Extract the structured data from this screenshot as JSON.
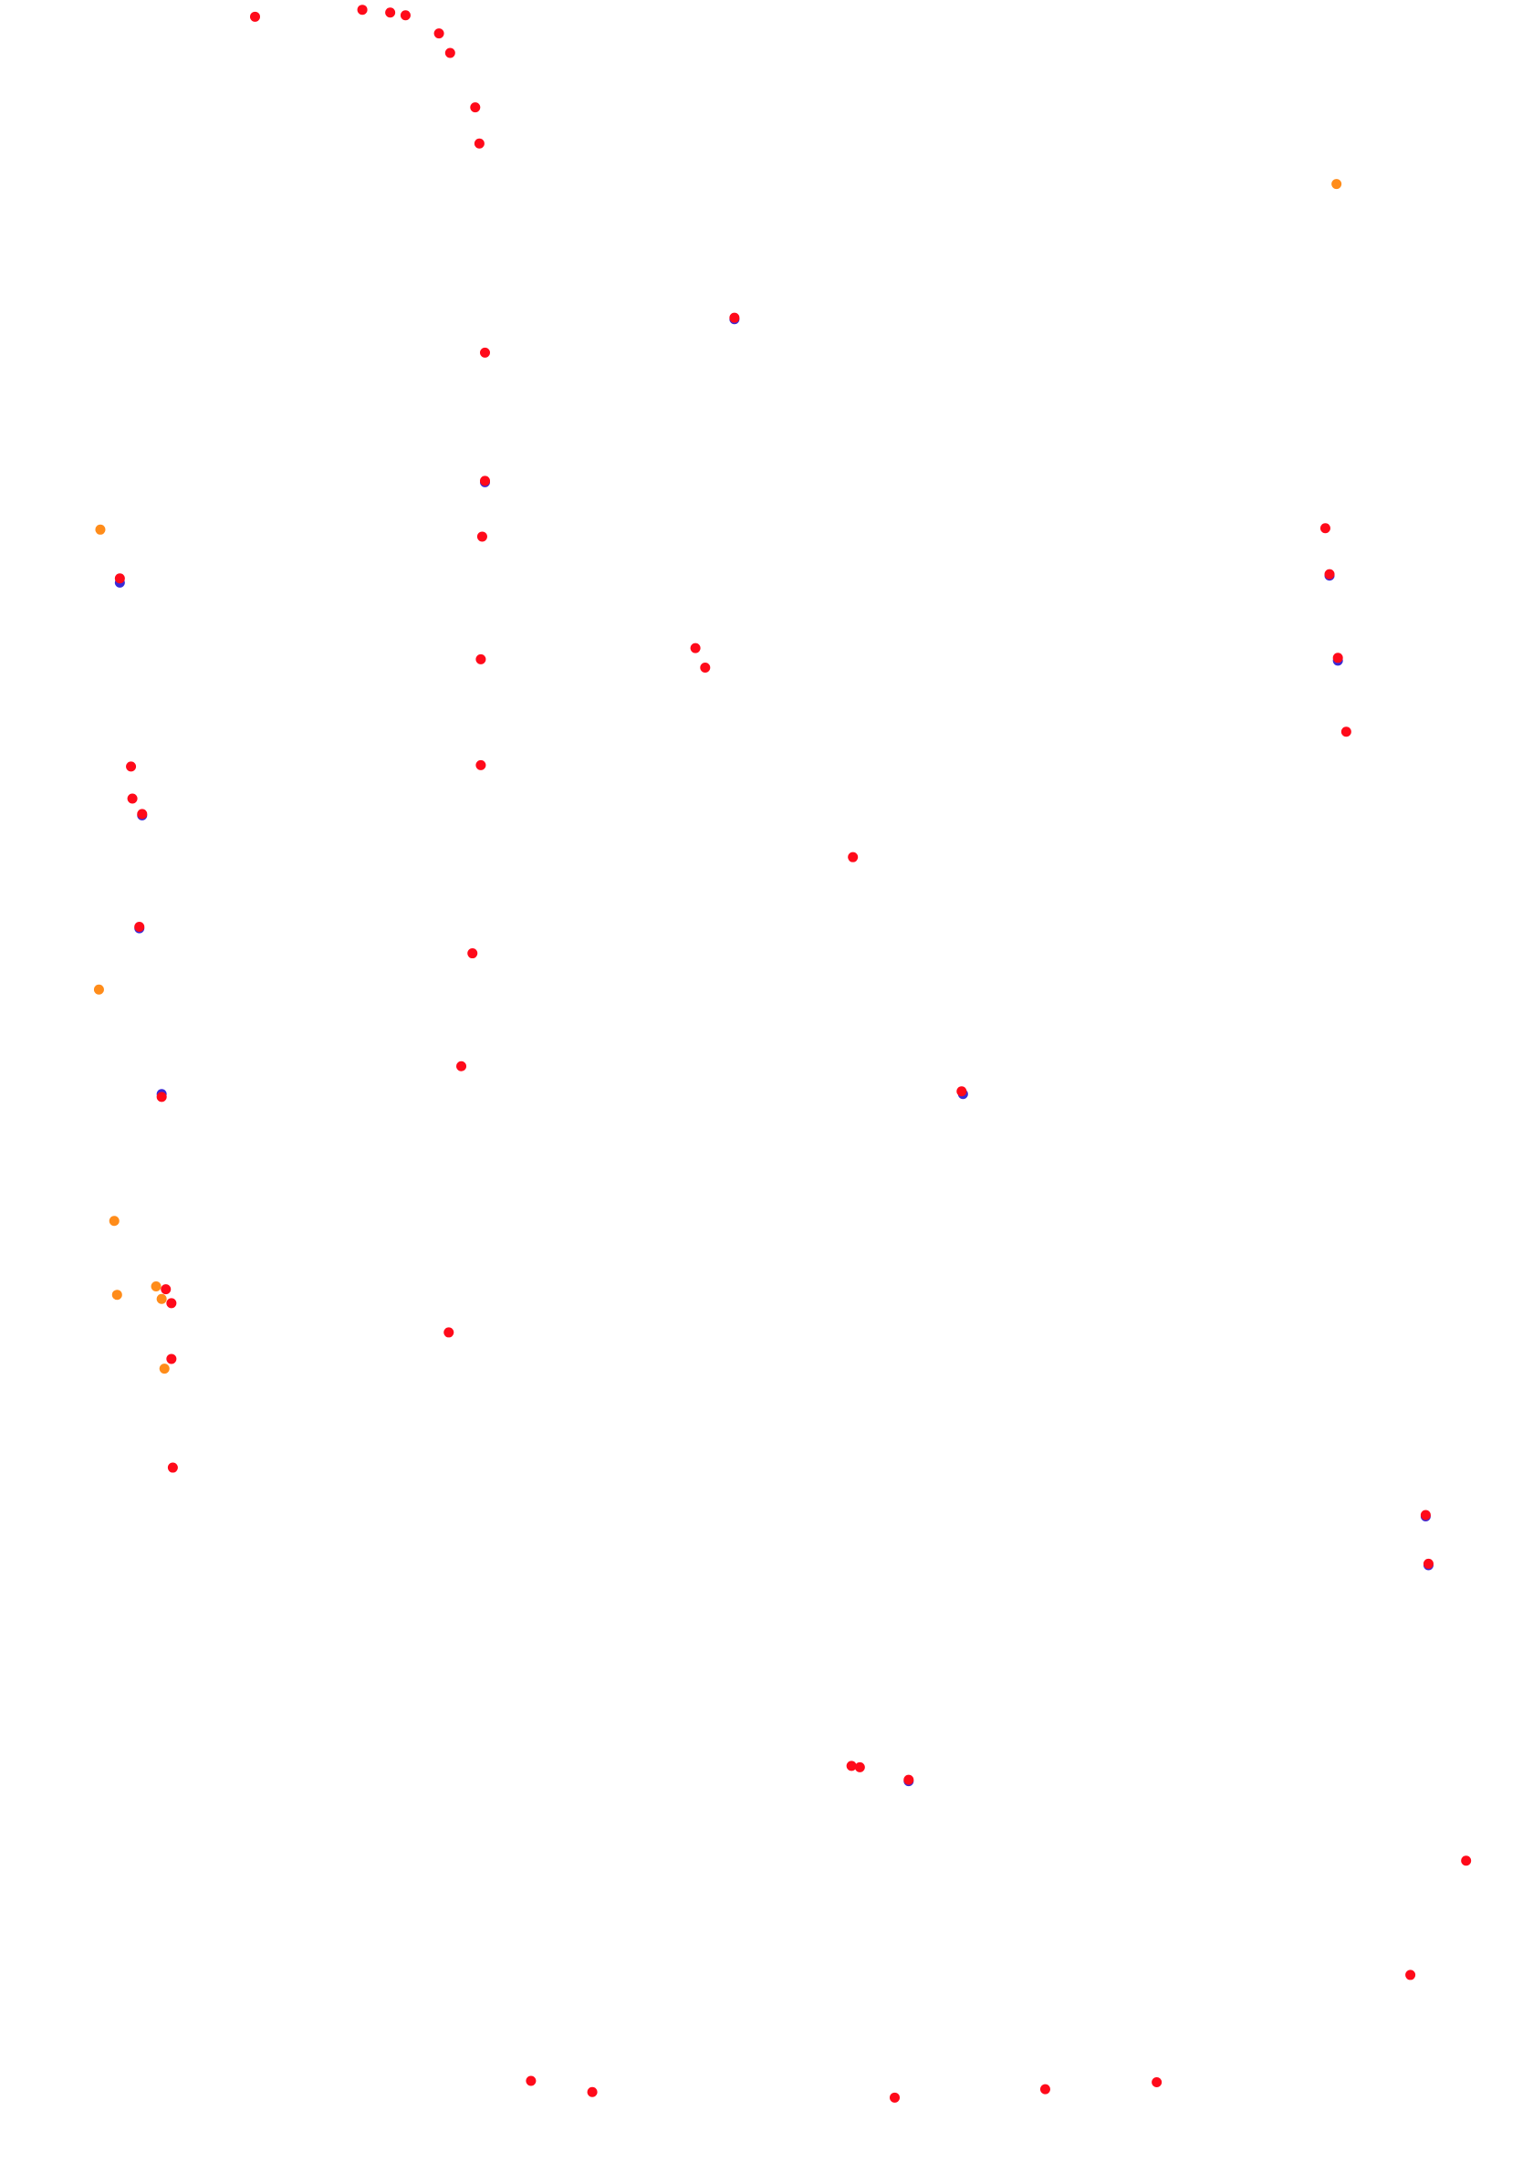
{
  "chart_data": {
    "type": "scatter",
    "xlim": [
      0,
      1100
    ],
    "ylim": [
      1567,
      0
    ],
    "series": [
      {
        "color": "#ff8c1a",
        "x": [
          959,
          72,
          71,
          82,
          84,
          112,
          116,
          118
        ],
        "values": [
          132,
          380,
          710,
          876,
          929,
          923,
          932,
          982
        ]
      },
      {
        "color": "#3a2bd6",
        "x": [
          86,
          102,
          116,
          691,
          954,
          960,
          1025,
          652,
          348,
          527,
          100,
          1023
        ],
        "values": [
          418,
          585,
          785,
          785,
          413,
          474,
          1123,
          1278,
          346,
          229,
          666,
          1088
        ]
      },
      {
        "color": "#ff0a1a",
        "x": [
          183,
          260,
          280,
          291,
          315,
          323,
          341,
          344,
          527,
          348,
          348,
          346,
          86,
          345,
          499,
          506,
          951,
          954,
          960,
          966,
          94,
          95,
          102,
          345,
          612,
          100,
          339,
          331,
          116,
          690,
          119,
          123,
          322,
          123,
          124,
          1023,
          1025,
          611,
          617,
          652,
          1052,
          1012,
          381,
          425,
          642,
          750,
          830
        ],
        "values": [
          12,
          7,
          9,
          11,
          24,
          38,
          77,
          103,
          228,
          253,
          345,
          385,
          415,
          473,
          465,
          479,
          379,
          412,
          472,
          525,
          550,
          573,
          584,
          549,
          615,
          665,
          684,
          765,
          787,
          783,
          925,
          935,
          956,
          975,
          1053,
          1087,
          1122,
          1267,
          1268,
          1277,
          1335,
          1417,
          1493,
          1501,
          1505,
          1499,
          1494
        ]
      }
    ]
  }
}
